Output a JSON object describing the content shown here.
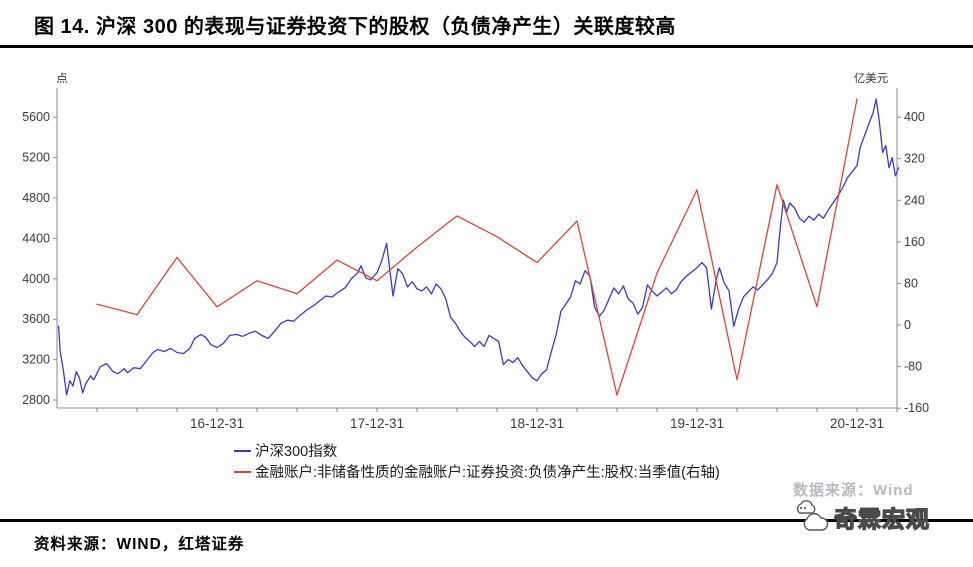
{
  "page": {
    "title": "图 14. 沪深 300 的表现与证券投资下的股权（负债净产生）关联度较高",
    "footer_source": "资料来源：WIND，红塔证券",
    "watermark": "数据来源：Wind",
    "logo_text": "奇霖宏观"
  },
  "chart_data": {
    "type": "line",
    "grid": false,
    "legend_position": "bottom-left",
    "x_axis": {
      "labels": [
        "16-12-31",
        "17-12-31",
        "18-12-31",
        "19-12-31",
        "20-12-31"
      ],
      "label_years": [
        2017,
        2018,
        2019,
        2020,
        2021
      ],
      "range_years": [
        2016.0,
        2021.28
      ],
      "tick_every_years": 0.25
    },
    "y_left": {
      "unit": "点",
      "ticks": [
        2800,
        3200,
        3600,
        4000,
        4400,
        4800,
        5200,
        5600
      ],
      "range": [
        2720,
        5890
      ]
    },
    "y_right": {
      "unit": "亿美元",
      "ticks": [
        -160,
        -80,
        0,
        80,
        160,
        240,
        320,
        400
      ],
      "range": [
        -160,
        460
      ]
    },
    "series": [
      {
        "name": "沪深300指数",
        "axis": "left",
        "color": "#3a3ac8",
        "x": [
          2016.01,
          2016.02,
          2016.04,
          2016.06,
          2016.08,
          2016.1,
          2016.12,
          2016.14,
          2016.16,
          2016.18,
          2016.21,
          2016.23,
          2016.27,
          2016.31,
          2016.35,
          2016.38,
          2016.42,
          2016.44,
          2016.48,
          2016.52,
          2016.56,
          2016.6,
          2016.63,
          2016.67,
          2016.71,
          2016.75,
          2016.79,
          2016.83,
          2016.86,
          2016.9,
          2016.93,
          2016.96,
          2017.0,
          2017.04,
          2017.08,
          2017.12,
          2017.16,
          2017.2,
          2017.24,
          2017.28,
          2017.32,
          2017.36,
          2017.4,
          2017.44,
          2017.48,
          2017.52,
          2017.56,
          2017.6,
          2017.64,
          2017.68,
          2017.72,
          2017.76,
          2017.8,
          2017.84,
          2017.88,
          2017.9,
          2017.93,
          2017.96,
          2018.0,
          2018.03,
          2018.06,
          2018.1,
          2018.13,
          2018.16,
          2018.19,
          2018.22,
          2018.25,
          2018.28,
          2018.31,
          2018.34,
          2018.37,
          2018.4,
          2018.43,
          2018.46,
          2018.49,
          2018.52,
          2018.55,
          2018.58,
          2018.61,
          2018.64,
          2018.67,
          2018.7,
          2018.73,
          2018.76,
          2018.79,
          2018.82,
          2018.85,
          2018.88,
          2018.91,
          2018.94,
          2018.97,
          2019.0,
          2019.03,
          2019.06,
          2019.09,
          2019.12,
          2019.15,
          2019.18,
          2019.21,
          2019.24,
          2019.27,
          2019.3,
          2019.33,
          2019.36,
          2019.39,
          2019.42,
          2019.45,
          2019.48,
          2019.51,
          2019.54,
          2019.57,
          2019.6,
          2019.63,
          2019.66,
          2019.69,
          2019.72,
          2019.75,
          2019.78,
          2019.81,
          2019.84,
          2019.87,
          2019.9,
          2019.93,
          2019.96,
          2020.0,
          2020.03,
          2020.06,
          2020.09,
          2020.12,
          2020.14,
          2020.17,
          2020.2,
          2020.23,
          2020.26,
          2020.29,
          2020.32,
          2020.35,
          2020.38,
          2020.41,
          2020.44,
          2020.47,
          2020.5,
          2020.52,
          2020.54,
          2020.56,
          2020.58,
          2020.61,
          2020.64,
          2020.67,
          2020.7,
          2020.73,
          2020.76,
          2020.79,
          2020.82,
          2020.85,
          2020.88,
          2020.91,
          2020.94,
          2020.97,
          2021.0,
          2021.02,
          2021.05,
          2021.08,
          2021.1,
          2021.12,
          2021.14,
          2021.16,
          2021.18,
          2021.2,
          2021.22,
          2021.24,
          2021.26
        ],
        "values": [
          3530,
          3280,
          3090,
          2850,
          2990,
          2940,
          3080,
          3020,
          2870,
          2960,
          3040,
          3000,
          3130,
          3160,
          3080,
          3060,
          3110,
          3070,
          3120,
          3110,
          3190,
          3270,
          3300,
          3280,
          3310,
          3270,
          3260,
          3310,
          3410,
          3450,
          3420,
          3350,
          3320,
          3360,
          3440,
          3450,
          3430,
          3460,
          3480,
          3440,
          3410,
          3480,
          3560,
          3590,
          3580,
          3640,
          3690,
          3730,
          3780,
          3830,
          3820,
          3870,
          3910,
          4000,
          4060,
          4130,
          4010,
          3990,
          4060,
          4180,
          4350,
          3830,
          4100,
          4050,
          3920,
          3970,
          3900,
          3880,
          3920,
          3850,
          3950,
          3900,
          3800,
          3620,
          3560,
          3480,
          3420,
          3380,
          3330,
          3380,
          3330,
          3440,
          3410,
          3380,
          3150,
          3200,
          3170,
          3220,
          3140,
          3080,
          3020,
          2990,
          3060,
          3100,
          3280,
          3450,
          3680,
          3750,
          3820,
          3980,
          3950,
          4080,
          4030,
          3720,
          3630,
          3690,
          3800,
          3910,
          3850,
          3930,
          3800,
          3760,
          3650,
          3720,
          3940,
          3880,
          3830,
          3870,
          3910,
          3850,
          3890,
          3970,
          4020,
          4060,
          4110,
          4160,
          4110,
          3700,
          3990,
          4110,
          3960,
          3880,
          3530,
          3700,
          3820,
          3870,
          3920,
          3890,
          3940,
          3990,
          4050,
          4160,
          4500,
          4780,
          4660,
          4750,
          4700,
          4600,
          4560,
          4620,
          4580,
          4640,
          4600,
          4680,
          4750,
          4820,
          4900,
          5000,
          5060,
          5120,
          5300,
          5430,
          5560,
          5640,
          5780,
          5550,
          5250,
          5320,
          5100,
          5200,
          5020,
          5100
        ]
      },
      {
        "name": "金融账户:非储备性质的金融账户:证券投资:负债净产生:股权:当季值(右轴)",
        "axis": "right",
        "color": "#e04238",
        "quarters": [
          "2016-03-31",
          "2016-06-30",
          "2016-09-30",
          "2016-12-31",
          "2017-03-31",
          "2017-06-30",
          "2017-09-30",
          "2017-12-31",
          "2018-03-31",
          "2018-06-30",
          "2018-09-30",
          "2018-12-31",
          "2019-03-31",
          "2019-06-30",
          "2019-09-30",
          "2019-12-31",
          "2020-03-31",
          "2020-06-30",
          "2020-09-30",
          "2020-12-31"
        ],
        "x": [
          2016.25,
          2016.5,
          2016.75,
          2017.0,
          2017.25,
          2017.5,
          2017.75,
          2018.0,
          2018.25,
          2018.5,
          2018.75,
          2019.0,
          2019.25,
          2019.5,
          2019.75,
          2020.0,
          2020.25,
          2020.5,
          2020.75,
          2021.0
        ],
        "values": [
          40,
          20,
          130,
          35,
          85,
          60,
          125,
          85,
          150,
          210,
          170,
          120,
          200,
          -135,
          100,
          260,
          -105,
          270,
          35,
          435
        ]
      }
    ]
  }
}
